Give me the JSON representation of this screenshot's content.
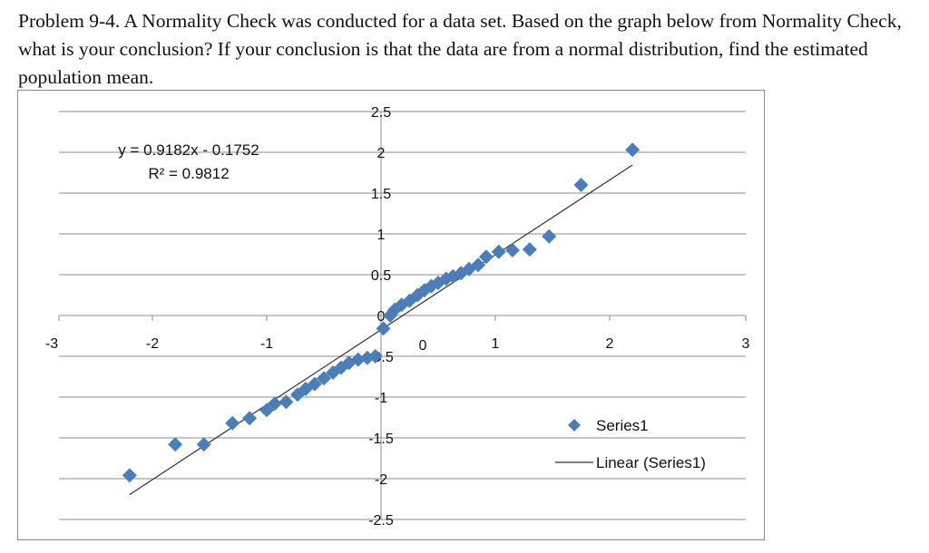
{
  "problem": {
    "text": "Problem 9-4. A Normality Check was conducted for a data set. Based on the graph below from Normality Check, what is your conclusion? If your conclusion is that the data are from a normal distribution, find the estimated population mean."
  },
  "chart_data": {
    "type": "scatter",
    "title": "",
    "xlabel": "",
    "ylabel": "",
    "xlim": [
      -3,
      3
    ],
    "ylim": [
      -2.5,
      2.5
    ],
    "x_ticks": [
      "-3",
      "-2",
      "-1",
      "0",
      "1",
      "2",
      "3"
    ],
    "y_ticks": [
      "2.5",
      "2",
      "1.5",
      "1",
      "0.5",
      "0",
      "-0.5",
      "-1",
      "-1.5",
      "-2",
      "-2.5"
    ],
    "grid": "horizontal",
    "legend_position": "bottom-right",
    "series": [
      {
        "name": "Series1",
        "color": "#4a7ebb",
        "marker": "diamond",
        "points": [
          [
            -2.2,
            -1.96
          ],
          [
            -1.8,
            -1.58
          ],
          [
            -1.55,
            -1.58
          ],
          [
            -1.3,
            -1.32
          ],
          [
            -1.15,
            -1.26
          ],
          [
            -1.0,
            -1.16
          ],
          [
            -0.93,
            -1.08
          ],
          [
            -0.83,
            -1.06
          ],
          [
            -0.73,
            -0.97
          ],
          [
            -0.66,
            -0.9
          ],
          [
            -0.58,
            -0.84
          ],
          [
            -0.5,
            -0.77
          ],
          [
            -0.42,
            -0.7
          ],
          [
            -0.35,
            -0.64
          ],
          [
            -0.28,
            -0.58
          ],
          [
            -0.2,
            -0.54
          ],
          [
            -0.12,
            -0.52
          ],
          [
            -0.05,
            -0.5
          ],
          [
            0.02,
            -0.16
          ],
          [
            0.08,
            0.0
          ],
          [
            0.12,
            0.07
          ],
          [
            0.18,
            0.13
          ],
          [
            0.25,
            0.18
          ],
          [
            0.32,
            0.25
          ],
          [
            0.38,
            0.31
          ],
          [
            0.44,
            0.36
          ],
          [
            0.5,
            0.4
          ],
          [
            0.57,
            0.45
          ],
          [
            0.63,
            0.48
          ],
          [
            0.7,
            0.52
          ],
          [
            0.77,
            0.57
          ],
          [
            0.85,
            0.62
          ],
          [
            0.92,
            0.72
          ],
          [
            1.03,
            0.78
          ],
          [
            1.15,
            0.8
          ],
          [
            1.3,
            0.81
          ],
          [
            1.47,
            0.97
          ],
          [
            1.75,
            1.6
          ],
          [
            2.2,
            2.03
          ]
        ]
      },
      {
        "name": "Linear (Series1)",
        "color": "#333333",
        "type": "trendline",
        "slope": 0.9182,
        "intercept": -0.1752,
        "x_range": [
          -2.2,
          2.2
        ]
      }
    ],
    "annotations": {
      "equation": "y = 0.9182x - 0.1752",
      "r_squared": "R² = 0.9812"
    },
    "legend": [
      "Series1",
      "Linear (Series1)"
    ]
  }
}
